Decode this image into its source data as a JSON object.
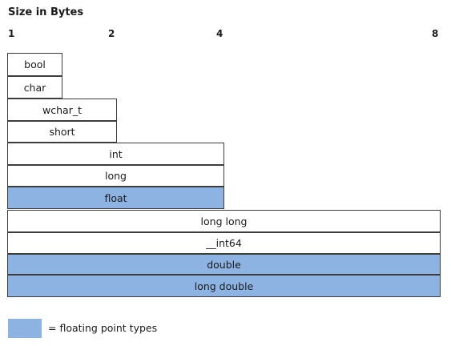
{
  "title": "Size in Bytes",
  "scale_ticks": [
    "1",
    "2",
    "4",
    "8"
  ],
  "types": [
    {
      "name": "bool",
      "bytes": 1,
      "floating": false
    },
    {
      "name": "char",
      "bytes": 1,
      "floating": false
    },
    {
      "name": "wchar_t",
      "bytes": 2,
      "floating": false
    },
    {
      "name": "short",
      "bytes": 2,
      "floating": false
    },
    {
      "name": "int",
      "bytes": 4,
      "floating": false
    },
    {
      "name": "long",
      "bytes": 4,
      "floating": false
    },
    {
      "name": "float",
      "bytes": 4,
      "floating": true
    },
    {
      "name": "long long",
      "bytes": 8,
      "floating": false
    },
    {
      "name": "__int64",
      "bytes": 8,
      "floating": false
    },
    {
      "name": "double",
      "bytes": 8,
      "floating": true
    },
    {
      "name": "long double",
      "bytes": 8,
      "floating": true
    }
  ],
  "legend": {
    "label": "= floating point types"
  },
  "colors": {
    "floating": "#8db3e2",
    "border": "#3d3d3d"
  }
}
